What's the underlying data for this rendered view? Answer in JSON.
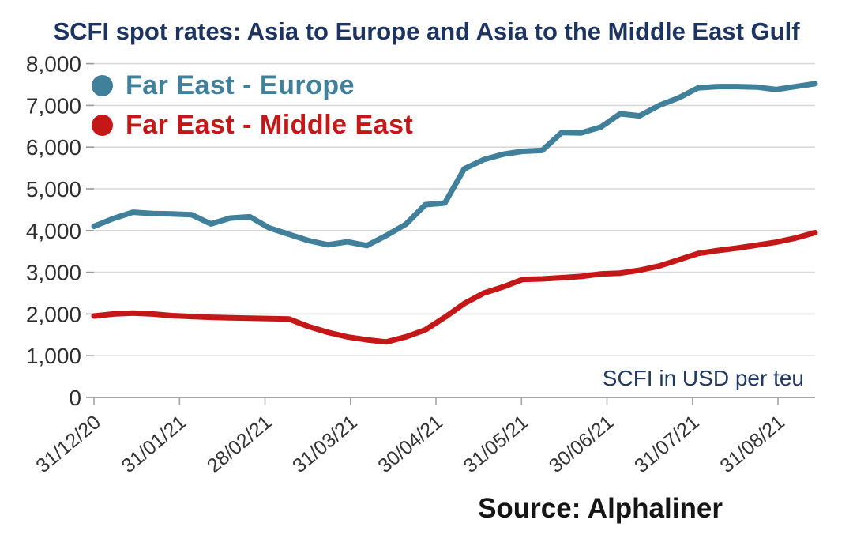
{
  "title": "SCFI spot rates: Asia to Europe and Asia to the Middle East Gulf",
  "annotation": "SCFI in USD per teu",
  "source": "Source: Alphaliner",
  "legend": [
    {
      "label": "Far East - Europe",
      "color": "#40809b"
    },
    {
      "label": "Far East - Middle East",
      "color": "#c41717"
    }
  ],
  "chart_data": {
    "type": "line",
    "title": "SCFI spot rates: Asia to Europe and Asia to the Middle East Gulf",
    "xlabel": "",
    "ylabel": "SCFI in USD per teu",
    "ylim": [
      0,
      8000
    ],
    "grid": "horizontal",
    "legend_position": "top-left",
    "x_interval": "weekly points, monthly tick labels",
    "x_tick_labels": [
      "31/12/20",
      "31/01/21",
      "28/02/21",
      "31/03/21",
      "30/04/21",
      "31/05/21",
      "30/06/21",
      "31/07/21",
      "31/08/21"
    ],
    "y_ticks": [
      {
        "label": "8,000",
        "value": 8000
      },
      {
        "label": "7,000",
        "value": 7000
      },
      {
        "label": "6,000",
        "value": 6000
      },
      {
        "label": "5,000",
        "value": 5000
      },
      {
        "label": "4,000",
        "value": 4000
      },
      {
        "label": "3,000",
        "value": 3000
      },
      {
        "label": "2,000",
        "value": 2000
      },
      {
        "label": "1,000",
        "value": 1000
      },
      {
        "label": "0",
        "value": 0
      }
    ],
    "series": [
      {
        "name": "Far East - Europe",
        "color": "#40809b",
        "values": [
          4100,
          4290,
          4440,
          4410,
          4400,
          4380,
          4160,
          4300,
          4330,
          4060,
          3910,
          3760,
          3660,
          3730,
          3640,
          3880,
          4150,
          4620,
          4660,
          5480,
          5700,
          5830,
          5900,
          5920,
          6350,
          6340,
          6480,
          6800,
          6750,
          7000,
          7180,
          7420,
          7450,
          7450,
          7440,
          7380,
          7450,
          7520
        ]
      },
      {
        "name": "Far East - Middle East",
        "color": "#c41717",
        "values": [
          1950,
          2000,
          2020,
          2000,
          1960,
          1940,
          1920,
          1910,
          1900,
          1890,
          1880,
          1700,
          1560,
          1450,
          1380,
          1330,
          1450,
          1620,
          1920,
          2250,
          2500,
          2650,
          2830,
          2840,
          2870,
          2900,
          2960,
          2980,
          3050,
          3150,
          3300,
          3450,
          3520,
          3580,
          3650,
          3720,
          3820,
          3950
        ]
      }
    ]
  }
}
